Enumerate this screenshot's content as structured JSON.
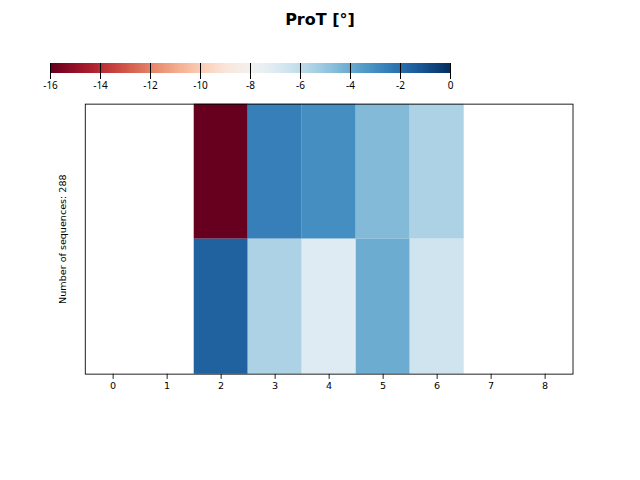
{
  "chart_data": {
    "type": "heatmap",
    "title": "ProT [°]",
    "ylabel": "Number of sequences: 288",
    "x": [
      0,
      1,
      2,
      3,
      4,
      5,
      6,
      7,
      8
    ],
    "xticks": [
      0,
      1,
      2,
      3,
      4,
      5,
      6,
      7,
      8
    ],
    "values": [
      [
        null,
        null,
        -16.0,
        -2.5,
        -3.0,
        -4.5,
        -5.5,
        null,
        null
      ],
      [
        null,
        null,
        -1.5,
        -5.5,
        -7.0,
        -4.0,
        -6.5,
        null,
        null
      ]
    ],
    "color": "RdBu",
    "colorbar_range": [
      -16,
      0
    ],
    "colorbar_ticks": [
      0,
      -2,
      -4,
      -6,
      -8,
      -10,
      -12,
      -14,
      -16
    ],
    "tick_labels": "x"
  }
}
